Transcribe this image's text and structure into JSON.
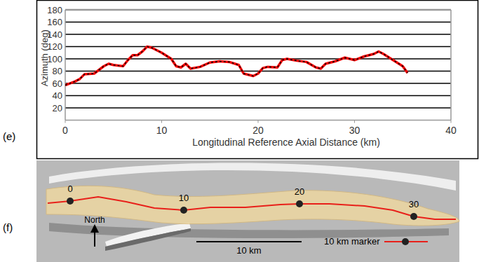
{
  "chart_data": {
    "type": "line",
    "x_label": "Longitudinal Reference Axial Distance (km)",
    "y_label": "Azimuth (deg)",
    "x": [
      0,
      1,
      1.5,
      2,
      3,
      3.5,
      4,
      4.5,
      5,
      6,
      6.5,
      7,
      7.5,
      8,
      8.5,
      9,
      10,
      11,
      11.5,
      12,
      12.5,
      13,
      14,
      15,
      16,
      17,
      18,
      18.5,
      19.5,
      20,
      20.5,
      21,
      22,
      22.5,
      23,
      24,
      25,
      26,
      26.5,
      27,
      28,
      29,
      30,
      31,
      32,
      32.5,
      33,
      34,
      35,
      35.5
    ],
    "values": [
      57,
      63,
      67,
      75,
      76,
      82,
      88,
      92,
      90,
      88,
      98,
      106,
      106,
      112,
      120,
      118,
      110,
      100,
      88,
      86,
      92,
      84,
      87,
      94,
      96,
      95,
      90,
      76,
      72,
      76,
      85,
      87,
      86,
      98,
      100,
      97,
      95,
      86,
      84,
      92,
      96,
      102,
      98,
      104,
      108,
      112,
      108,
      98,
      88,
      77
    ],
    "color": "#ff0000",
    "line_style": "dashed",
    "xlim": [
      0,
      40
    ],
    "xticks": [
      0,
      10,
      20,
      30,
      40
    ],
    "ylim": [
      0,
      180
    ],
    "yticks": [
      20,
      40,
      60,
      80,
      100,
      120,
      140,
      160,
      180
    ],
    "grid": true
  },
  "figure": {
    "panel_labels": [
      "(e)",
      "(f)"
    ],
    "map": {
      "markers": [
        0,
        10,
        20,
        30
      ],
      "north_label": "North",
      "scale_bar_label": "10 km",
      "legend_label": "10 km marker"
    }
  }
}
